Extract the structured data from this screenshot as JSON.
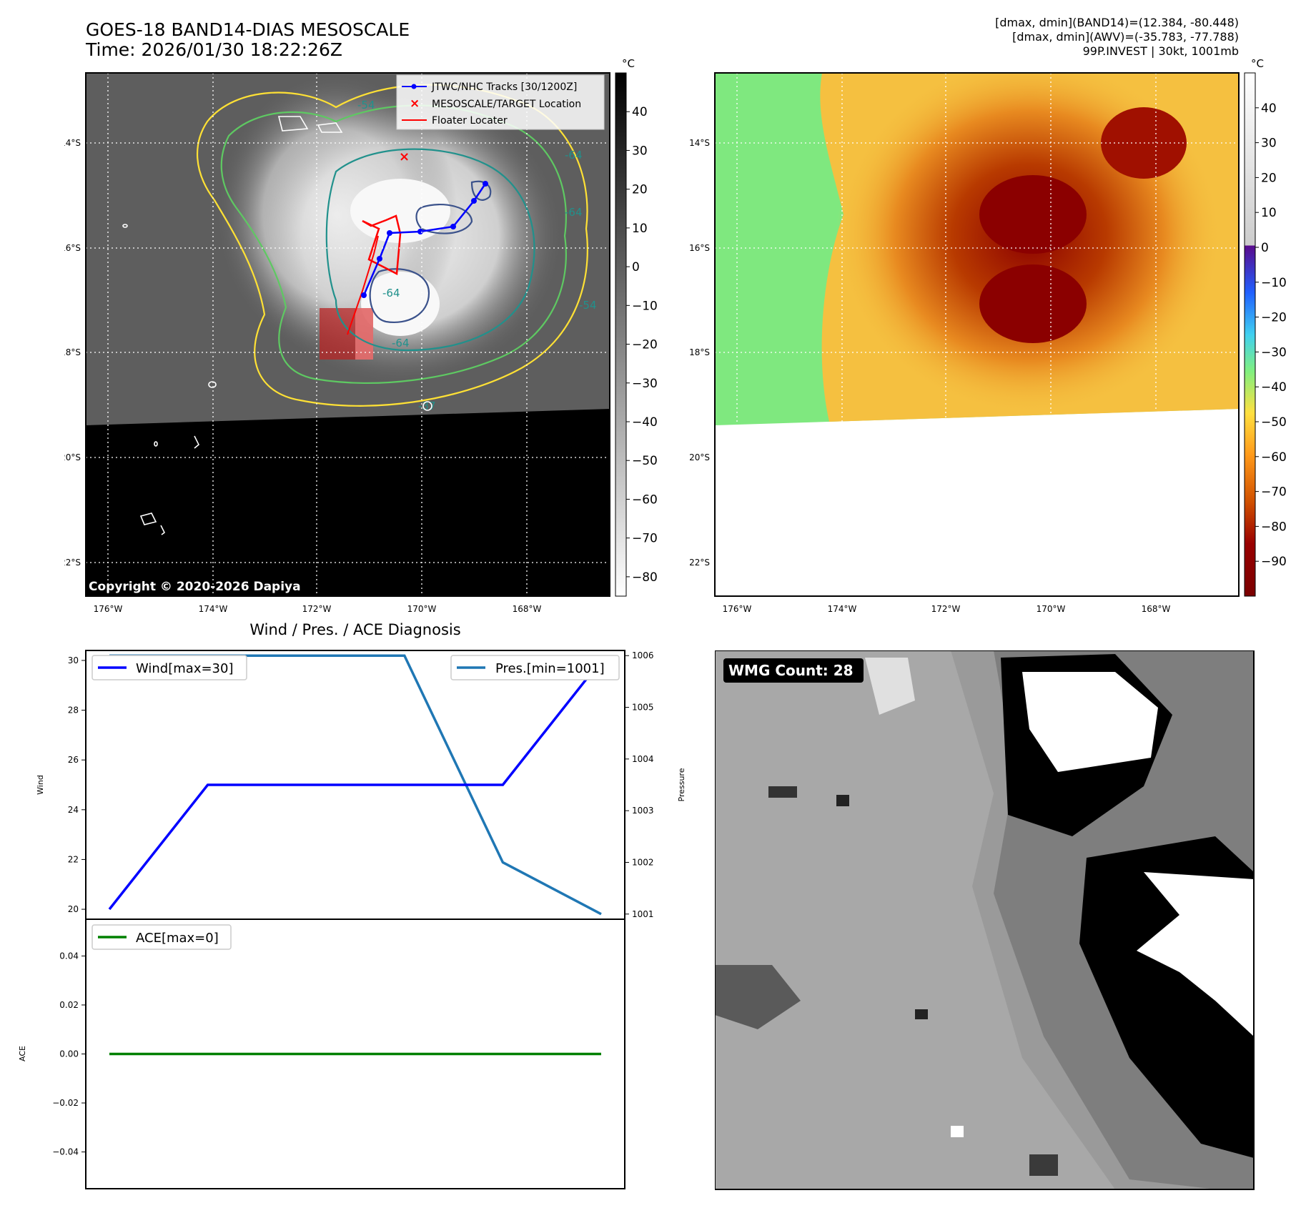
{
  "header": {
    "title_line1": "GOES-18 BAND14-DIAS MESOSCALE",
    "title_line2": "Time: 2026/01/30 18:22:26Z",
    "stats_line1": "[dmax, dmin](BAND14)=(12.384, -80.448)",
    "stats_line2": "[dmax, dmin](AWV)=(-35.783, -77.788)",
    "stats_line3": "99P.INVEST | 30kt, 1001mb"
  },
  "map_axes": {
    "lon_ticks": [
      "176°W",
      "174°W",
      "172°W",
      "170°W",
      "168°W"
    ],
    "lat_ticks": [
      "14°S",
      "16°S",
      "18°S",
      "20°S",
      "22°S"
    ]
  },
  "ir_panel": {
    "colorbar_unit": "°C",
    "colorbar_ticks": [
      "40",
      "30",
      "20",
      "10",
      "0",
      "−10",
      "−20",
      "−30",
      "−40",
      "−50",
      "−60",
      "−70",
      "−80"
    ],
    "colorbar_range": [
      -85,
      50
    ],
    "legend": [
      {
        "label": "JTWC/NHC Tracks [30/1200Z]",
        "color": "#0000ff"
      },
      {
        "label": "MESOSCALE/TARGET Location",
        "color": "#ff0000"
      },
      {
        "label": "Floater Locater",
        "color": "#ff0000"
      }
    ],
    "contour_labels": [
      "-64",
      "-64",
      "-54",
      "-64",
      "-64",
      "-37",
      "-54"
    ],
    "copyright": "Copyright © 2020-2026 Dapiya"
  },
  "awv_panel": {
    "colorbar_unit": "°C",
    "colorbar_ticks": [
      "40",
      "30",
      "20",
      "10",
      "0",
      "−10",
      "−20",
      "−30",
      "−40",
      "−50",
      "−60",
      "−70",
      "−80",
      "−90"
    ],
    "colorbar_range": [
      -100,
      50
    ]
  },
  "diag_panel": {
    "title": "Wind / Pres. / ACE Diagnosis",
    "wind_ylabel": "Wind",
    "pres_ylabel": "Pressure",
    "ace_ylabel": "ACE",
    "legend_wind": "Wind[max=30]",
    "legend_pres": "Pres.[min=1001]",
    "legend_ace": "ACE[max=0]"
  },
  "wmg_panel": {
    "badge": "WMG Count: 28"
  },
  "colors": {
    "wind": "#0000ff",
    "pressure": "#1f77b4",
    "ace": "#008000",
    "contour_yellow": "#ffe135",
    "contour_green": "#5ec962",
    "contour_teal": "#21918c",
    "contour_navy": "#3b528b"
  },
  "chart_data": [
    {
      "type": "line",
      "title": "Wind / Pres. / ACE Diagnosis",
      "x": [
        0,
        1,
        2,
        3,
        4,
        5
      ],
      "series": [
        {
          "name": "Wind[max=30]",
          "axis": "left",
          "values": [
            20,
            25,
            25,
            25,
            25,
            30
          ]
        },
        {
          "name": "Pres.[min=1001]",
          "axis": "right",
          "values": [
            1006,
            1006,
            1006,
            1006,
            1002,
            1001
          ]
        }
      ],
      "ylabel": "Wind",
      "y2label": "Pressure",
      "ylim": [
        19.6,
        30.4
      ],
      "y2lim": [
        1000.9,
        1006.1
      ],
      "yticks": [
        20,
        22,
        24,
        26,
        28,
        30
      ],
      "y2ticks": [
        1001,
        1002,
        1003,
        1004,
        1005,
        1006
      ],
      "legend": [
        "upper-left",
        "upper-right"
      ]
    },
    {
      "type": "line",
      "x": [
        0,
        1,
        2,
        3,
        4,
        5
      ],
      "series": [
        {
          "name": "ACE[max=0]",
          "values": [
            0,
            0,
            0,
            0,
            0,
            0
          ]
        }
      ],
      "ylabel": "ACE",
      "ylim": [
        -0.055,
        0.055
      ],
      "yticks": [
        0.04,
        0.02,
        0.0,
        -0.02,
        -0.04
      ],
      "ytick_labels": [
        "0.04",
        "0.02",
        "0.00",
        "−0.02",
        "−0.04"
      ],
      "legend": "upper-left"
    }
  ]
}
